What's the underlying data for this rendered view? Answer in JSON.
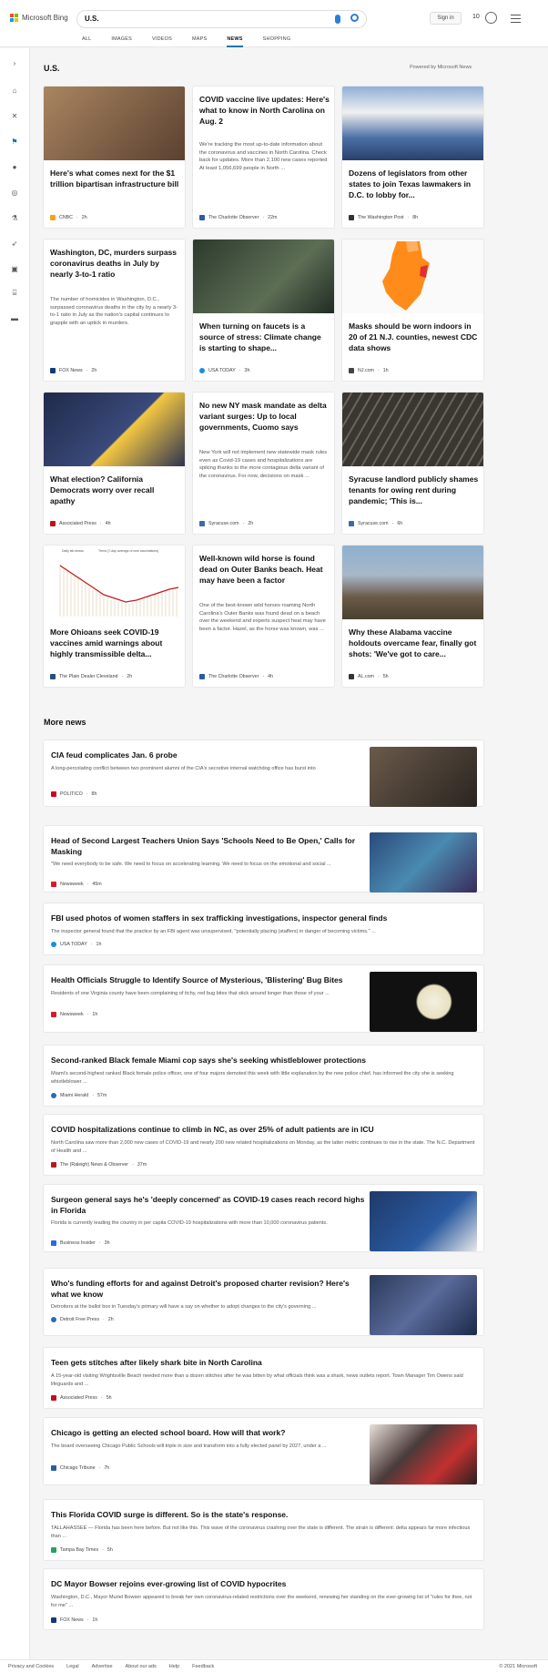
{
  "header": {
    "brand": "Microsoft Bing",
    "query": "U.S.",
    "signin": "Sign in",
    "rewards": "10",
    "tabs": [
      "ALL",
      "IMAGES",
      "VIDEOS",
      "MAPS",
      "NEWS",
      "SHOPPING"
    ],
    "active_tab": "NEWS"
  },
  "section": {
    "title": "U.S.",
    "powered": "Powered by Microsoft News"
  },
  "cards": [
    {
      "title": "Here's what comes next for the $1 trillion bipartisan infrastructure bill",
      "source": "CNBC",
      "time": "2h",
      "logo": "#f3a31b",
      "img": "#8a6a48"
    },
    {
      "title": "COVID vaccine live updates: Here's what to know in North Carolina on Aug. 2",
      "snippet": "We're tracking the most up-to-date information about the coronavirus and vaccines in North Carolina. Check back for updates. More than 2,100 new cases reported At least 1,056,699 people in North ...",
      "source": "The Charlotte Observer",
      "time": "22m",
      "logo": "#2a5d9f"
    },
    {
      "title": "Dozens of legislators from other states to join Texas lawmakers in D.C. to lobby for...",
      "source": "The Washington Post",
      "time": "8h",
      "logo": "#333",
      "img": "#5e7ea8"
    },
    {
      "title": "Washington, DC, murders surpass coronavirus deaths in July by nearly 3-to-1 ratio",
      "snippet": "The number of homicides in Washington, D.C., surpassed coronavirus deaths in the city by a nearly 3-to-1 ratio in July as the nation's capital continues to grapple with an uptick in murders.",
      "source": "FOX News",
      "time": "2h",
      "logo": "#123a7a"
    },
    {
      "title": "When turning on faucets is a source of stress: Climate change is starting to shape...",
      "source": "USA TODAY",
      "time": "3h",
      "logo": "#1a8de0",
      "img": "#3a4a3a"
    },
    {
      "title": "Masks should be worn indoors in 20 of 21 N.J. counties, newest CDC data shows",
      "source": "NJ.com",
      "time": "1h",
      "logo": "#444",
      "img": "#f5f5f5"
    },
    {
      "title": "What election? California Democrats worry over recall apathy",
      "source": "Associated Press",
      "time": "4h",
      "logo": "#c0101a",
      "img": "#2f3a5a"
    },
    {
      "title": "No new NY mask mandate as delta variant surges: Up to local governments, Cuomo says",
      "snippet": "New York will not implement new statewide mask rules even as Covid-19 cases and hospitalizations are spiking thanks to the more contagious delta variant of the coronavirus. For now, decisions on mask ...",
      "source": "Syracuse.com",
      "time": "2h",
      "logo": "#3a6ba8"
    },
    {
      "title": "Syracuse landlord publicly shames tenants for owing rent during pandemic; 'This is...",
      "source": "Syracuse.com",
      "time": "6h",
      "logo": "#3a6ba8",
      "img": "#4a4640"
    },
    {
      "title": "More Ohioans seek COVID-19 vaccines amid warnings about highly transmissible delta...",
      "source": "The Plain Dealer Cleveland",
      "time": "2h",
      "logo": "#2a4d7a",
      "img": "#ffffff"
    },
    {
      "title": "Well-known wild horse is found dead on Outer Banks beach. Heat may have been a factor",
      "snippet": "One of the best-known wild horses roaming North Carolina's Outer Banks was found dead on a beach over the weekend and experts suspect heat may have been a factor. Hazel, as the horse was known, was ...",
      "source": "The Charlotte Observer",
      "time": "4h",
      "logo": "#2a5d9f"
    },
    {
      "title": "Why these Alabama vaccine holdouts overcame fear, finally got shots: 'We've got to care...",
      "source": "AL.com",
      "time": "5h",
      "logo": "#333",
      "img": "#6f8a9a"
    }
  ],
  "chart_legend": [
    "Daily lab draws",
    "Trend (7-day average of new vaccinations)"
  ],
  "more_title": "More news",
  "news": [
    {
      "title": "CIA feud complicates Jan. 6 probe",
      "snippet": "A long-percolating conflict between two prominent alumni of the CIA's secretive internal watchdog office has burst into",
      "source": "POLITICO",
      "time": "8h",
      "logo": "#d0021b",
      "img": "#3a3530"
    },
    {
      "title": "Head of Second Largest Teachers Union Says 'Schools Need to Be Open,' Calls for Masking",
      "snippet": "\"We need everybody to be safe. We need to focus on accelerating learning. We need to focus on the emotional and social ...",
      "source": "Newsweek",
      "time": "45m",
      "logo": "#d41b2c",
      "img": "#2a4a7a"
    },
    {
      "title": "FBI used photos of women staffers in sex trafficking investigations, inspector general finds",
      "snippet": "The inspector general found that the practice by an FBI agent was unsupervised, \"potentially placing (staffers) in danger of becoming victims.\" ...",
      "source": "USA TODAY",
      "time": "1h",
      "logo": "#1a8de0"
    },
    {
      "title": "Health Officials Struggle to Identify Source of Mysterious, 'Blistering' Bug Bites",
      "snippet": "Residents of one Virginia county have been complaining of itchy, red bug bites that stick around longer than those of your ...",
      "source": "Newsweek",
      "time": "1h",
      "logo": "#d41b2c",
      "img": "#111111"
    },
    {
      "title": "Second-ranked Black female Miami cop says she's seeking whistleblower protections",
      "snippet": "Miami's second-highest ranked Black female police officer, one of four majors demoted this week with little explanation by the new police chief, has informed the city she is seeking whistleblower ...",
      "source": "Miami Herald",
      "time": "57m",
      "logo": "#2a6ab0"
    },
    {
      "title": "COVID hospitalizations continue to climb in NC, as over 25% of adult patients are in ICU",
      "snippet": "North Carolina saw more than 2,000 new cases of COVID-19 and nearly 200 new related hospitalizations on Monday, as the latter metric continues to rise in the state. The N.C. Department of Health and ...",
      "source": "The (Raleigh) News & Observer",
      "time": "37m",
      "logo": "#b01c1c"
    },
    {
      "title": "Surgeon general says he's 'deeply concerned' as COVID-19 cases reach record highs in Florida",
      "snippet": "Florida is currently leading the country in per capita COVID-19 hospitalizations with more than 10,000 coronavirus patients.",
      "source": "Business Insider",
      "time": "3h",
      "logo": "#2a6ae0",
      "img": "#1f3a6a"
    },
    {
      "title": "Who's funding efforts for and against Detroit's proposed charter revision? Here's what we know",
      "snippet": "Detroiters at the ballot box in Tuesday's primary will have a say on whether to adopt changes to the city's governing ...",
      "source": "Detroit Free Press",
      "time": "2h",
      "logo": "#2a6ab0",
      "img": "#3a4a6a"
    },
    {
      "title": "Teen gets stitches after likely shark bite in North Carolina",
      "snippet": "A 15-year-old visiting Wrightsville Beach needed more than a dozen stitches after he was bitten by what officials think was a shark, news outlets report. Town Manager Tim Owens said lifeguards and ...",
      "source": "Associated Press",
      "time": "5h",
      "logo": "#c0101a"
    },
    {
      "title": "Chicago is getting an elected school board. How will that work?",
      "snippet": "The board overseeing Chicago Public Schools will triple in size and transform into a fully elected panel by 2027, under a ...",
      "source": "Chicago Tribune",
      "time": "7h",
      "logo": "#2a5da0",
      "img": "#4a3a3a"
    },
    {
      "title": "This Florida COVID surge is different. So is the state's response.",
      "snippet": "TALLAHASSEE — Florida has been here before. But not like this. This wave of the coronavirus crashing over the state is different. The strain is different: delta appears far more infectious than ...",
      "source": "Tampa Bay Times",
      "time": "5h",
      "logo": "#2aa060"
    },
    {
      "title": "DC Mayor Bowser rejoins ever-growing list of COVID hypocrites",
      "snippet": "Washington, D.C., Mayor Muriel Bowser appeared to break her own coronavirus-related restrictions over the weekend, renewing her standing on the ever-growing list of \"rules for thee, not for me\" ...",
      "source": "FOX News",
      "time": "1h",
      "logo": "#123a7a"
    }
  ],
  "footer": {
    "links": [
      "Privacy and Cookies",
      "Legal",
      "Advertise",
      "About our ads",
      "Help",
      "Feedback"
    ],
    "copyright": "© 2021 Microsoft"
  }
}
